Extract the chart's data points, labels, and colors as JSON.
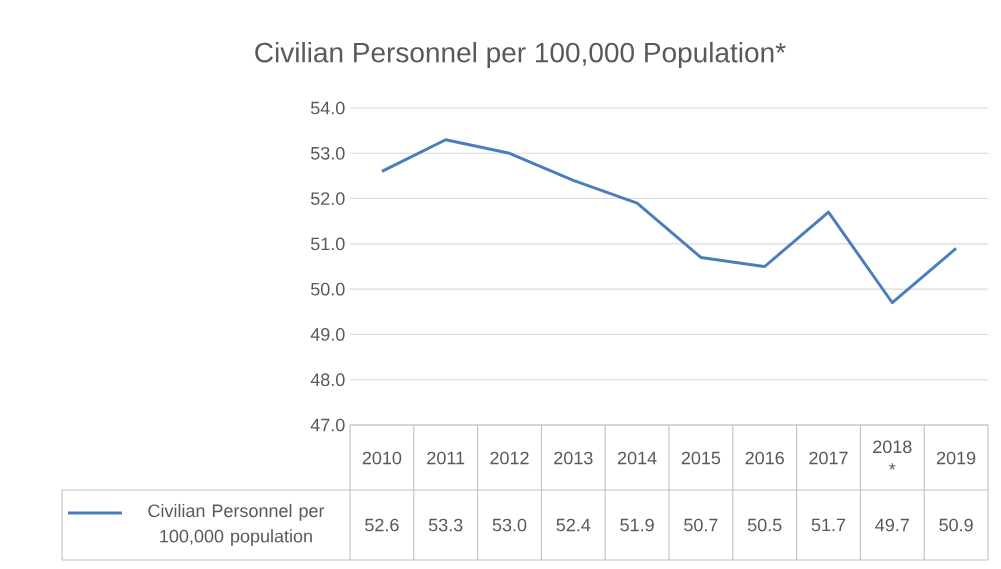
{
  "chart_data": {
    "type": "line",
    "title": "Civilian Personnel per 100,000 Population*",
    "categories": [
      "2010",
      "2011",
      "2012",
      "2013",
      "2014",
      "2015",
      "2016",
      "2017",
      "2018 *",
      "2019"
    ],
    "series": [
      {
        "name": "Civilian Personnel per 100,000 population",
        "color": "#4a7ebb",
        "values": [
          52.6,
          53.3,
          53.0,
          52.4,
          51.9,
          50.7,
          50.5,
          51.7,
          49.7,
          50.9
        ],
        "value_labels": [
          "52.6",
          "53.3",
          "53.0",
          "52.4",
          "51.9",
          "50.7",
          "50.5",
          "51.7",
          "49.7",
          "50.9"
        ]
      }
    ],
    "ylim": [
      47,
      54
    ],
    "yticks": [
      {
        "value": 47,
        "label": "47.0"
      },
      {
        "value": 48,
        "label": "48.0"
      },
      {
        "value": 49,
        "label": "49.0"
      },
      {
        "value": 50,
        "label": "50.0"
      },
      {
        "value": 51,
        "label": "51.0"
      },
      {
        "value": 52,
        "label": "52.0"
      },
      {
        "value": 53,
        "label": "53.0"
      },
      {
        "value": 54,
        "label": "54.0"
      }
    ],
    "grid": "y",
    "legend": "bottom",
    "marker": "none",
    "line_style": "solid"
  }
}
